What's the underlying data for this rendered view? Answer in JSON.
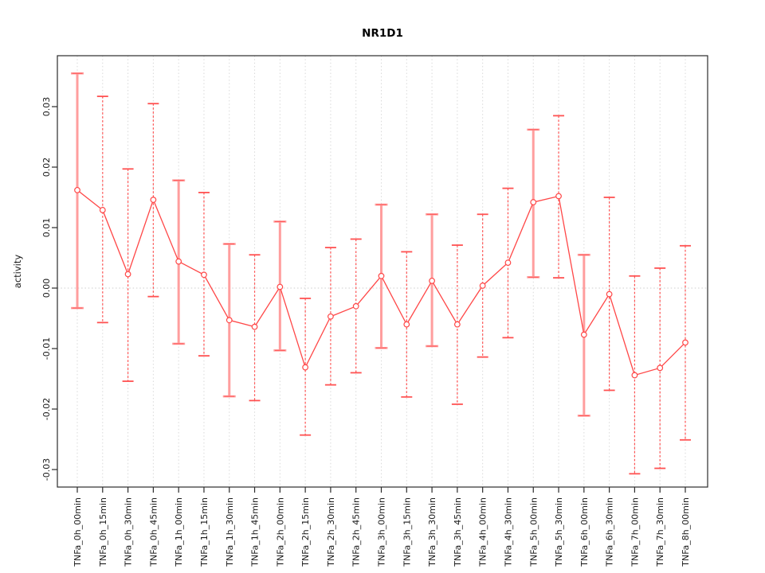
{
  "title": "NR1D1",
  "chart_data": {
    "type": "line",
    "title": "NR1D1",
    "xlabel": "",
    "ylabel": "activity",
    "ylim": [
      -0.0329,
      0.0384
    ],
    "grid": "vertical dotted at every category, dotted horizontal line at y=0",
    "legend": "none",
    "y_tick_labels": [
      "0.03",
      "0.02",
      "0.01",
      "0.00",
      "-0.01",
      "-0.02",
      "-0.03"
    ],
    "categories": [
      "TNFa_0h_00min",
      "TNFa_0h_15min",
      "TNFa_0h_30min",
      "TNFa_0h_45min",
      "TNFa_1h_00min",
      "TNFa_1h_15min",
      "TNFa_1h_30min",
      "TNFa_1h_45min",
      "TNFa_2h_00min",
      "TNFa_2h_15min",
      "TNFa_2h_30min",
      "TNFa_2h_45min",
      "TNFa_3h_00min",
      "TNFa_3h_15min",
      "TNFa_3h_30min",
      "TNFa_3h_45min",
      "TNFa_4h_00min",
      "TNFa_4h_30min",
      "TNFa_5h_00min",
      "TNFa_5h_30min",
      "TNFa_6h_00min",
      "TNFa_6h_30min",
      "TNFa_7h_00min",
      "TNFa_7h_30min",
      "TNFa_8h_00min"
    ],
    "series": [
      {
        "name": "activity",
        "marker": "open-circle",
        "values": [
          0.0162,
          0.0129,
          0.0023,
          0.0146,
          0.0044,
          0.0022,
          -0.0053,
          -0.0064,
          0.0002,
          -0.0131,
          -0.0047,
          -0.003,
          0.002,
          -0.006,
          0.0012,
          -0.006,
          0.0004,
          0.0042,
          0.0142,
          0.0152,
          -0.0077,
          -0.001,
          -0.0144,
          -0.0132,
          -0.009
        ],
        "error_high": [
          0.0355,
          0.0317,
          0.0197,
          0.0305,
          0.0178,
          0.0158,
          0.0073,
          0.0055,
          0.011,
          -0.0017,
          0.0067,
          0.0081,
          0.0138,
          0.006,
          0.0122,
          0.0071,
          0.0122,
          0.0165,
          0.0262,
          0.0285,
          0.0055,
          0.015,
          0.002,
          0.0033,
          0.007
        ],
        "error_low": [
          -0.0033,
          -0.0057,
          -0.0154,
          -0.0014,
          -0.0092,
          -0.0112,
          -0.0179,
          -0.0186,
          -0.0103,
          -0.0243,
          -0.016,
          -0.014,
          -0.0099,
          -0.018,
          -0.0096,
          -0.0192,
          -0.0114,
          -0.0082,
          0.0018,
          0.0017,
          -0.0211,
          -0.0169,
          -0.0307,
          -0.0298,
          -0.0251
        ],
        "bar_styles": [
          "pink",
          "red",
          "red",
          "red",
          "pink",
          "red",
          "pink",
          "red",
          "pink",
          "red",
          "red",
          "red",
          "pink",
          "red",
          "pink",
          "red",
          "red",
          "red",
          "pink",
          "red",
          "pink",
          "red",
          "red",
          "red",
          "red"
        ]
      }
    ],
    "colors": {
      "line": "#ff4747",
      "marker_stroke": "#ff4747",
      "errorbar_red": "#ff5252",
      "errorbar_pink": "#ff9e9e",
      "grid": "#d9d9d9",
      "zero_line": "#cccccc",
      "axis": "#2b2b2b",
      "text": "#1a1a1a",
      "background": "#ffffff"
    }
  }
}
